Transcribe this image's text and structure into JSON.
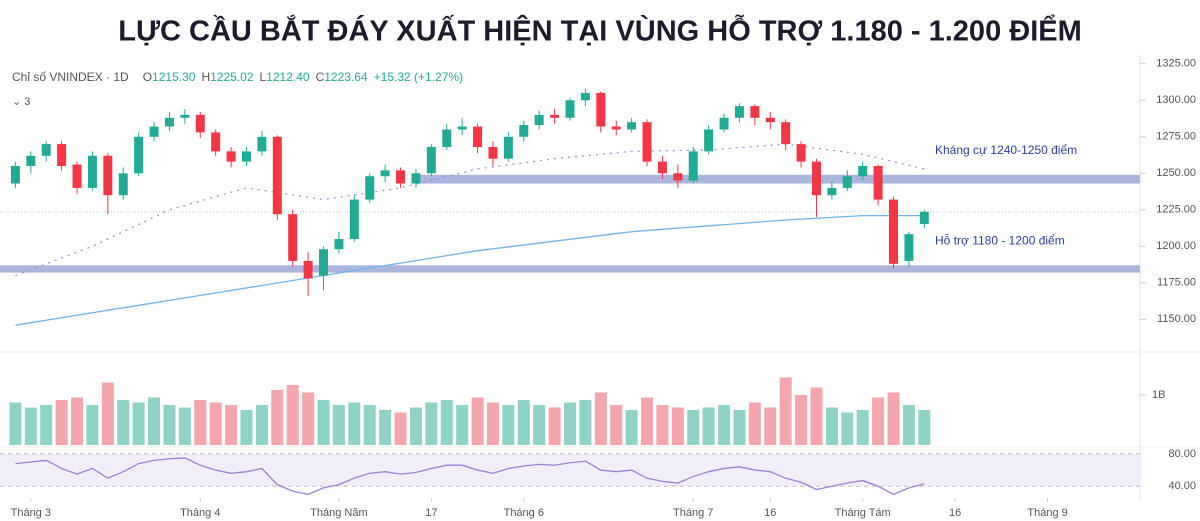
{
  "title": "LỰC CẦU BẮT ĐÁY XUẤT HIỆN TẠI VÙNG HỖ TRỢ 1.180 - 1.200 ĐIỂM",
  "chart_data": [
    {
      "type": "candlestick",
      "symbol": "Chỉ số VNINDEX · 1D",
      "ohlc_labels": [
        {
          "key": "O",
          "text": "1215.30"
        },
        {
          "key": "H",
          "text": "1225.02"
        },
        {
          "key": "L",
          "text": "1212.40"
        },
        {
          "key": "C",
          "text": "1223.64"
        }
      ],
      "change": "+15.32 (+1.27%)",
      "indicator_count": "3",
      "open": [
        1243,
        1255,
        1262,
        1270,
        1256,
        1240,
        1262,
        1235,
        1250,
        1275,
        1282,
        1288,
        1290,
        1278,
        1265,
        1258,
        1265,
        1275,
        1222,
        1190,
        1180,
        1198,
        1205,
        1232,
        1248,
        1252,
        1243,
        1250,
        1268,
        1280,
        1282,
        1268,
        1260,
        1275,
        1283,
        1290,
        1288,
        1300,
        1305,
        1282,
        1280,
        1285,
        1258,
        1250,
        1245,
        1265,
        1280,
        1288,
        1296,
        1288,
        1285,
        1270,
        1258,
        1235,
        1240,
        1248,
        1255,
        1232,
        1190,
        1215.3
      ],
      "high": [
        1258,
        1265,
        1272,
        1272,
        1258,
        1265,
        1264,
        1254,
        1278,
        1285,
        1292,
        1294,
        1292,
        1280,
        1268,
        1268,
        1279,
        1276,
        1225,
        1196,
        1200,
        1210,
        1235,
        1250,
        1256,
        1254,
        1253,
        1270,
        1284,
        1288,
        1284,
        1272,
        1278,
        1286,
        1293,
        1294,
        1302,
        1308,
        1306,
        1286,
        1288,
        1287,
        1262,
        1256,
        1268,
        1283,
        1291,
        1298,
        1297,
        1292,
        1287,
        1272,
        1260,
        1244,
        1252,
        1258,
        1256,
        1234,
        1210,
        1225.02
      ],
      "low": [
        1240,
        1250,
        1258,
        1252,
        1236,
        1238,
        1222,
        1232,
        1248,
        1272,
        1279,
        1284,
        1274,
        1262,
        1254,
        1255,
        1262,
        1218,
        1186,
        1166,
        1170,
        1195,
        1203,
        1230,
        1244,
        1240,
        1240,
        1248,
        1266,
        1276,
        1264,
        1255,
        1258,
        1272,
        1280,
        1284,
        1286,
        1296,
        1278,
        1276,
        1278,
        1255,
        1246,
        1240,
        1243,
        1263,
        1278,
        1285,
        1283,
        1280,
        1266,
        1254,
        1220,
        1232,
        1238,
        1245,
        1228,
        1185,
        1186,
        1212.4
      ],
      "close": [
        1255,
        1262,
        1270,
        1255,
        1240,
        1262,
        1235,
        1250,
        1275,
        1282,
        1288,
        1290,
        1278,
        1265,
        1258,
        1265,
        1275,
        1222,
        1190,
        1178,
        1198,
        1205,
        1232,
        1248,
        1252,
        1243,
        1250,
        1268,
        1280,
        1282,
        1268,
        1260,
        1275,
        1283,
        1290,
        1288,
        1300,
        1305,
        1282,
        1280,
        1285,
        1258,
        1250,
        1245,
        1265,
        1280,
        1288,
        1296,
        1288,
        1285,
        1270,
        1258,
        1235,
        1240,
        1248,
        1255,
        1232,
        1188,
        1208.32,
        1223.64
      ],
      "colors": {
        "up": "#22ab94",
        "down": "#f23645"
      },
      "xlim": [
        -1,
        73
      ],
      "xticks": [
        {
          "value": 1,
          "label": "Tháng 3"
        },
        {
          "value": 12,
          "label": "Tháng 4"
        },
        {
          "value": 21,
          "label": "Tháng Năm"
        },
        {
          "value": 27,
          "label": "17"
        },
        {
          "value": 33,
          "label": "Tháng 6"
        },
        {
          "value": 44,
          "label": "Tháng 7"
        },
        {
          "value": 49,
          "label": "16"
        },
        {
          "value": 55,
          "label": "Tháng Tám"
        },
        {
          "value": 61,
          "label": "16"
        },
        {
          "value": 67,
          "label": "Tháng 9"
        }
      ],
      "ylim": [
        1129,
        1331
      ],
      "yticks": [
        {
          "value": 1150,
          "label": "1150.00"
        },
        {
          "value": 1175,
          "label": "1175.00"
        },
        {
          "value": 1200,
          "label": "1200.00"
        },
        {
          "value": 1225,
          "label": "1225.00"
        },
        {
          "value": 1250,
          "label": "1250.00"
        },
        {
          "value": 1275,
          "label": "1275.00"
        },
        {
          "value": 1300,
          "label": "1300.00"
        },
        {
          "value": 1325,
          "label": "1325.00"
        }
      ],
      "lines": [
        {
          "style": "dotted",
          "color": "#8f95d6",
          "x": [
            0,
            5,
            10,
            15,
            20,
            25,
            30,
            35,
            40,
            45,
            50,
            55,
            59
          ],
          "values": [
            1180,
            1200,
            1225,
            1240,
            1232,
            1240,
            1253,
            1260,
            1265,
            1266,
            1270,
            1263,
            1253
          ]
        },
        {
          "style": "solid",
          "color": "#6fb3e8",
          "x": [
            0,
            10,
            20,
            30,
            40,
            50,
            55,
            59
          ],
          "values": [
            1146,
            1163,
            1180,
            1197,
            1210,
            1218,
            1221,
            1221
          ]
        }
      ],
      "bands": [
        {
          "x": [
            26,
            73
          ],
          "range": [
            1243,
            1249
          ],
          "color": "#aab4dd",
          "label": "Kháng cự 1240-1250 điểm"
        },
        {
          "x": [
            -1,
            73
          ],
          "range": [
            1182,
            1187
          ],
          "color": "#aab4dd",
          "label": "Hỗ trợ 1180 - 1200 điểm"
        }
      ]
    },
    {
      "type": "volume",
      "values": [
        850000000,
        750000000,
        800000000,
        900000000,
        950000000,
        800000000,
        1250000000,
        900000000,
        850000000,
        950000000,
        800000000,
        750000000,
        900000000,
        850000000,
        800000000,
        700000000,
        800000000,
        1100000000,
        1200000000,
        1050000000,
        900000000,
        800000000,
        850000000,
        800000000,
        700000000,
        650000000,
        750000000,
        850000000,
        900000000,
        800000000,
        950000000,
        850000000,
        800000000,
        900000000,
        800000000,
        750000000,
        850000000,
        900000000,
        1050000000,
        800000000,
        700000000,
        950000000,
        800000000,
        750000000,
        700000000,
        750000000,
        800000000,
        700000000,
        850000000,
        750000000,
        1350000000,
        1000000000,
        1150000000,
        750000000,
        650000000,
        700000000,
        950000000,
        1050000000,
        800000000,
        700000000
      ],
      "colors": {
        "up": "#8fd3c6",
        "down": "#f4a6ac"
      },
      "ylim": [
        0,
        1800000000
      ],
      "yticks": [
        {
          "value": 1000000000,
          "label": "1B"
        }
      ]
    },
    {
      "type": "line",
      "values": [
        68,
        70,
        72,
        62,
        55,
        62,
        50,
        58,
        68,
        72,
        74,
        75,
        66,
        60,
        56,
        58,
        62,
        42,
        34,
        30,
        38,
        42,
        50,
        56,
        58,
        55,
        57,
        62,
        66,
        66,
        60,
        56,
        62,
        65,
        67,
        66,
        69,
        71,
        60,
        58,
        60,
        50,
        46,
        44,
        52,
        58,
        62,
        64,
        60,
        58,
        50,
        45,
        36,
        40,
        44,
        47,
        40,
        30,
        38,
        43
      ],
      "color": "#9c7fd4",
      "ylim": [
        28,
        86
      ],
      "yticks": [
        {
          "value": 40,
          "label": "40.00"
        },
        {
          "value": 80,
          "label": "80.00"
        }
      ]
    }
  ]
}
